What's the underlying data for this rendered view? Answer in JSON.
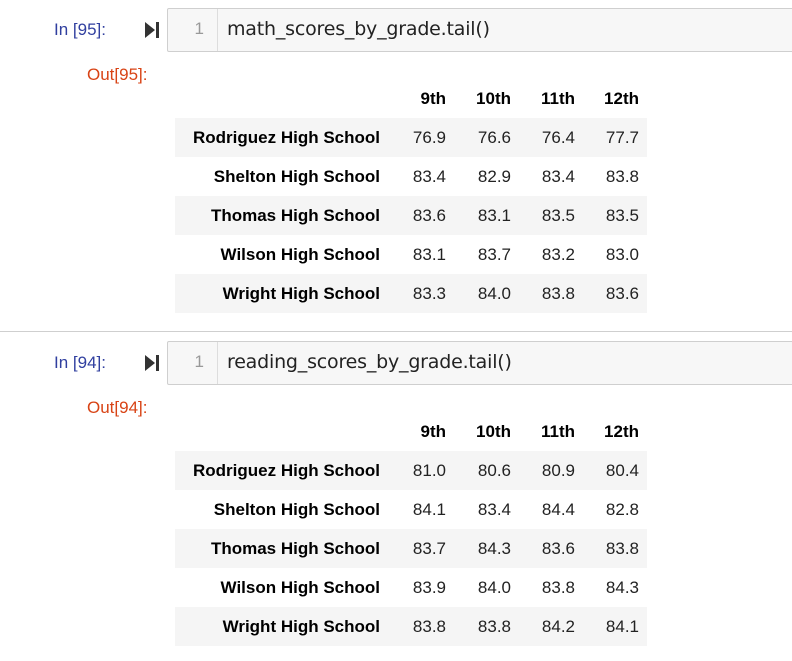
{
  "cells": [
    {
      "in_prompt": "In [95]:",
      "line_number": "1",
      "code": "math_scores_by_grade.tail()",
      "out_prompt": "Out[95]:",
      "table": {
        "columns": [
          "",
          "9th",
          "10th",
          "11th",
          "12th"
        ],
        "rows": [
          {
            "index": "Rodriguez High School",
            "values": [
              "76.9",
              "76.6",
              "76.4",
              "77.7"
            ]
          },
          {
            "index": "Shelton High School",
            "values": [
              "83.4",
              "82.9",
              "83.4",
              "83.8"
            ]
          },
          {
            "index": "Thomas High School",
            "values": [
              "83.6",
              "83.1",
              "83.5",
              "83.5"
            ]
          },
          {
            "index": "Wilson High School",
            "values": [
              "83.1",
              "83.7",
              "83.2",
              "83.0"
            ]
          },
          {
            "index": "Wright High School",
            "values": [
              "83.3",
              "84.0",
              "83.8",
              "83.6"
            ]
          }
        ]
      }
    },
    {
      "in_prompt": "In [94]:",
      "line_number": "1",
      "code": "reading_scores_by_grade.tail()",
      "out_prompt": "Out[94]:",
      "table": {
        "columns": [
          "",
          "9th",
          "10th",
          "11th",
          "12th"
        ],
        "rows": [
          {
            "index": "Rodriguez High School",
            "values": [
              "81.0",
              "80.6",
              "80.9",
              "80.4"
            ]
          },
          {
            "index": "Shelton High School",
            "values": [
              "84.1",
              "83.4",
              "84.4",
              "82.8"
            ]
          },
          {
            "index": "Thomas High School",
            "values": [
              "83.7",
              "84.3",
              "83.6",
              "83.8"
            ]
          },
          {
            "index": "Wilson High School",
            "values": [
              "83.9",
              "84.0",
              "83.8",
              "84.3"
            ]
          },
          {
            "index": "Wright High School",
            "values": [
              "83.8",
              "83.8",
              "84.2",
              "84.1"
            ]
          }
        ]
      }
    }
  ],
  "icons": {
    "run": "run-cell-icon"
  },
  "colors": {
    "in_prompt": "#303f9f",
    "out_prompt": "#d84315",
    "editor_bg": "#f7f7f7"
  }
}
